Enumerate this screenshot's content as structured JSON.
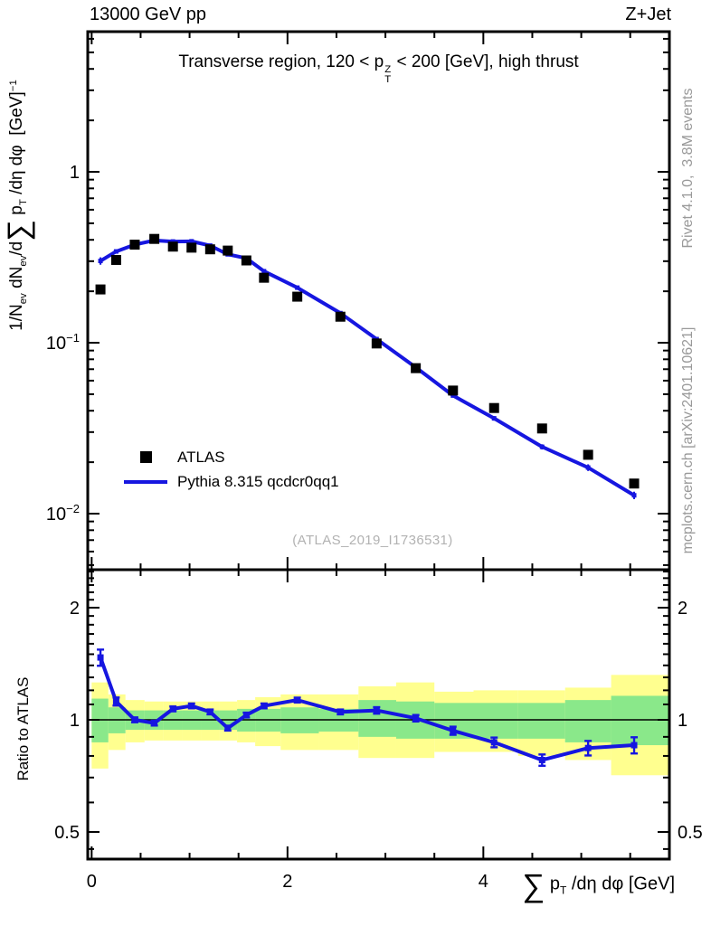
{
  "header": {
    "beam_label": "13000 GeV pp",
    "process_label": "Z+Jet"
  },
  "side_labels": {
    "generator_info": "Rivet 4.1.0,  3.8M events",
    "site_info": "mcplots.cern.ch [arXiv:2401.10621]"
  },
  "main_panel": {
    "watermark": "(ATLAS_2019_I1736531)",
    "y_tick_labels": [
      {
        "v": 1,
        "base": "1",
        "exp": ""
      },
      {
        "v": 0.1,
        "base": "10",
        "exp": "−1"
      },
      {
        "v": 0.01,
        "base": "10",
        "exp": "−2"
      }
    ]
  },
  "ratio_panel": {
    "ylabel": "Ratio to ATLAS",
    "y_tick_labels": [
      {
        "v": 2,
        "label": "2"
      },
      {
        "v": 1,
        "label": "1"
      },
      {
        "v": 0.5,
        "label": "0.5"
      }
    ]
  },
  "x_axis": {
    "tick_labels": [
      {
        "v": 0,
        "label": "0"
      },
      {
        "v": 2,
        "label": "2"
      },
      {
        "v": 4,
        "label": "4"
      }
    ]
  },
  "legend": {
    "entries": [
      {
        "label": "ATLAS",
        "marker": "black-square"
      },
      {
        "label": "Pythia 8.315 qcdcr0qq1",
        "marker": "blue-line"
      }
    ]
  },
  "rich": {
    "panel_title": [
      {
        "t": "Transverse region, 120 < p"
      },
      {
        "stack": {
          "top": "Z",
          "bottom": "T"
        }
      },
      {
        "t": " < 200 [GeV], high thrust"
      }
    ],
    "ylabel_main": [
      {
        "t": "1/N"
      },
      {
        "t": "ev",
        "m": "sub"
      },
      {
        "t": " dN"
      },
      {
        "t": "ev",
        "m": "sub"
      },
      {
        "t": "/d"
      },
      {
        "t": "∑",
        "m": "big"
      },
      {
        "t": " p"
      },
      {
        "t": "T",
        "m": "sub"
      },
      {
        "t": " /dη dφ  [GeV]"
      },
      {
        "t": "−1",
        "m": "sup"
      }
    ],
    "xlabel": [
      {
        "t": "∑",
        "m": "big"
      },
      {
        "t": " p"
      },
      {
        "t": "T",
        "m": "sub"
      },
      {
        "t": " /dη dφ [GeV]"
      }
    ]
  },
  "colors": {
    "mc_line": "#1616e0",
    "data_marker": "#000000",
    "band_outer": "#ffff8f",
    "band_inner": "#8ae88a",
    "muted_text": "#999999",
    "watermark_text": "#b2b2b2",
    "frame": "#000000"
  },
  "chart_data": {
    "type": "line",
    "title": "Transverse region, 120 < pT(Z) < 200 [GeV], high thrust",
    "xlabel": "Sum pT /deta dphi [GeV]",
    "ylabel": "1/N_ev dN_ev/d Sum pT /deta dphi [GeV]^-1",
    "ratio_ylabel": "Ratio to ATLAS",
    "x_range": [
      -0.04,
      5.9
    ],
    "y_range_main_log": [
      0.0047,
      6.6
    ],
    "y_range_ratio_log": [
      0.42,
      2.53
    ],
    "legend_position": "middle-left",
    "grid": false,
    "x": [
      0.09,
      0.25,
      0.44,
      0.64,
      0.83,
      1.02,
      1.21,
      1.39,
      1.58,
      1.76,
      2.1,
      2.54,
      2.91,
      3.31,
      3.69,
      4.11,
      4.6,
      5.07,
      5.54
    ],
    "series": [
      {
        "name": "ATLAS",
        "style": "black-squares",
        "values": [
          0.205,
          0.305,
          0.375,
          0.405,
          0.365,
          0.36,
          0.352,
          0.346,
          0.303,
          0.24,
          0.186,
          0.142,
          0.099,
          0.071,
          0.0525,
          0.0415,
          0.0315,
          0.0221,
          0.015
        ]
      },
      {
        "name": "Pythia 8.315 qcdcr0qq1",
        "style": "blue-line",
        "values": [
          0.301,
          0.342,
          0.375,
          0.397,
          0.391,
          0.392,
          0.37,
          0.329,
          0.312,
          0.262,
          0.21,
          0.149,
          0.105,
          0.0717,
          0.0491,
          0.0361,
          0.0246,
          0.0186,
          0.0128
        ]
      }
    ],
    "ratio": {
      "values": [
        1.47,
        1.12,
        1.0,
        0.98,
        1.07,
        1.09,
        1.05,
        0.95,
        1.03,
        1.09,
        1.13,
        1.05,
        1.06,
        1.01,
        0.935,
        0.87,
        0.78,
        0.84,
        0.855
      ],
      "errors": [
        0.05,
        0.025,
        0.015,
        0.015,
        0.015,
        0.015,
        0.015,
        0.015,
        0.015,
        0.015,
        0.015,
        0.015,
        0.02,
        0.02,
        0.025,
        0.03,
        0.035,
        0.045,
        0.05
      ],
      "bin_edges": [
        0.0,
        0.17,
        0.345,
        0.54,
        0.735,
        0.925,
        1.115,
        1.3,
        1.485,
        1.67,
        1.93,
        2.32,
        2.725,
        3.11,
        3.5,
        3.9,
        4.355,
        4.835,
        5.305,
        5.9
      ],
      "band_outer_hi": [
        1.26,
        1.17,
        1.13,
        1.12,
        1.12,
        1.12,
        1.12,
        1.12,
        1.13,
        1.15,
        1.17,
        1.17,
        1.23,
        1.26,
        1.19,
        1.2,
        1.2,
        1.22,
        1.32
      ],
      "band_outer_lo": [
        0.74,
        0.83,
        0.87,
        0.88,
        0.88,
        0.88,
        0.88,
        0.88,
        0.87,
        0.85,
        0.83,
        0.83,
        0.79,
        0.79,
        0.82,
        0.82,
        0.8,
        0.78,
        0.71
      ],
      "band_inner_hi": [
        1.14,
        1.08,
        1.06,
        1.06,
        1.06,
        1.06,
        1.06,
        1.06,
        1.07,
        1.07,
        1.08,
        1.07,
        1.13,
        1.12,
        1.11,
        1.11,
        1.11,
        1.13,
        1.16
      ],
      "band_inner_lo": [
        0.87,
        0.92,
        0.94,
        0.94,
        0.94,
        0.94,
        0.94,
        0.94,
        0.93,
        0.93,
        0.92,
        0.93,
        0.9,
        0.89,
        0.89,
        0.89,
        0.89,
        0.87,
        0.855
      ]
    }
  }
}
